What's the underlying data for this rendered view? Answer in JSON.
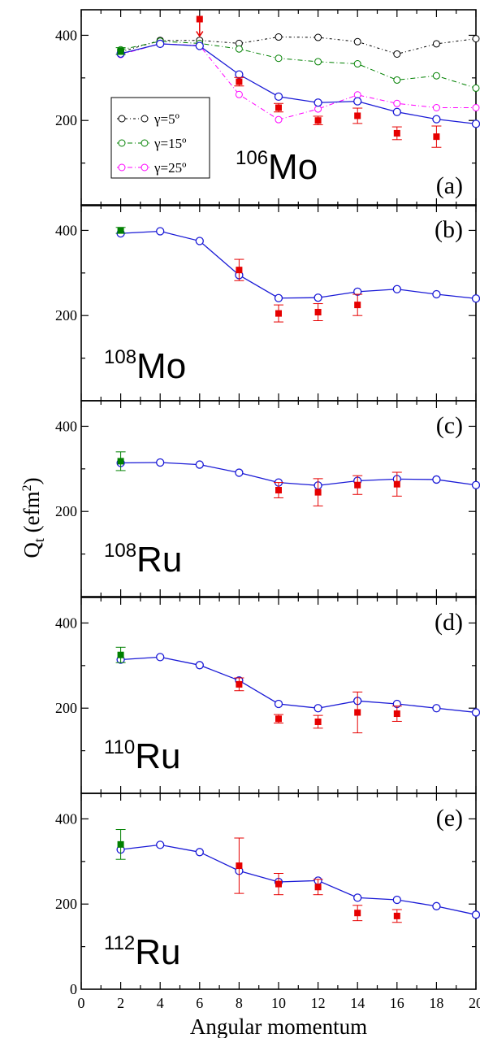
{
  "chart_data": {
    "type": "scatter",
    "ylabel_main": "Q",
    "ylabel_sub": "t",
    "ylabel_unit": " (efm",
    "ylabel_unit_sup": "2",
    "ylabel_unit_close": ")",
    "xlabel": "Angular momentum",
    "xlim": [
      0,
      20
    ],
    "ylim": [
      0,
      460
    ],
    "x_ticks": [
      0,
      2,
      4,
      6,
      8,
      10,
      12,
      14,
      16,
      18,
      20
    ],
    "y_ticks": [
      200,
      400
    ],
    "bottom_y_ticks": [
      0,
      200,
      400
    ],
    "colors": {
      "theory": "#1a1ad6",
      "exp": "#e60000",
      "exp_2plus": "#008000",
      "g5": "#000000",
      "g15": "#008000",
      "g25": "#ff00ff"
    },
    "panels": [
      {
        "label": "(a)",
        "nucleus_mass": "106",
        "nucleus_symbol": "Mo",
        "theory": {
          "x": [
            2,
            4,
            6,
            8,
            10,
            12,
            14,
            16,
            18,
            20
          ],
          "y": [
            357,
            380,
            375,
            308,
            256,
            242,
            245,
            220,
            203,
            192
          ]
        },
        "exp_2plus": {
          "x": 2,
          "y": 363,
          "err": 8
        },
        "exp": [
          {
            "x": 8,
            "y": 291,
            "err": 10
          },
          {
            "x": 10,
            "y": 230,
            "err": 10
          },
          {
            "x": 12,
            "y": 200,
            "err": 10
          },
          {
            "x": 14,
            "y": 211,
            "err": 18
          },
          {
            "x": 16,
            "y": 170,
            "err": 15
          },
          {
            "x": 18,
            "y": 162,
            "err": 25
          }
        ],
        "upper_limit": {
          "x": 6,
          "y": 438
        },
        "gamma_series": [
          {
            "name": "γ=5º",
            "key": "g5",
            "y": [
              361,
              388,
              388,
              381,
              396,
              395,
              385,
              356,
              380,
              392
            ]
          },
          {
            "name": "γ=15º",
            "key": "g15",
            "y": [
              366,
              386,
              381,
              368,
              346,
              338,
              333,
              295,
              305,
              276
            ]
          },
          {
            "name": "γ=25º",
            "key": "g25",
            "y": [
              355,
              380,
              376,
              261,
              202,
              227,
              260,
              240,
              230,
              230
            ]
          }
        ]
      },
      {
        "label": "(b)",
        "nucleus_mass": "108",
        "nucleus_symbol": "Mo",
        "theory": {
          "x": [
            2,
            4,
            6,
            8,
            10,
            12,
            14,
            16,
            18,
            20
          ],
          "y": [
            393,
            398,
            375,
            295,
            241,
            242,
            256,
            262,
            250,
            240
          ]
        },
        "exp_2plus": {
          "x": 2,
          "y": 400,
          "err": 7
        },
        "exp": [
          {
            "x": 8,
            "y": 307,
            "err": 25
          },
          {
            "x": 10,
            "y": 205,
            "err": 20
          },
          {
            "x": 12,
            "y": 208,
            "err": 20
          },
          {
            "x": 14,
            "y": 225,
            "err": 25
          }
        ]
      },
      {
        "label": "(c)",
        "nucleus_mass": "108",
        "nucleus_symbol": "Ru",
        "theory": {
          "x": [
            2,
            4,
            6,
            8,
            10,
            12,
            14,
            16,
            18,
            20
          ],
          "y": [
            314,
            315,
            310,
            291,
            268,
            261,
            272,
            276,
            275,
            262
          ]
        },
        "exp_2plus": {
          "x": 2,
          "y": 318,
          "err": 22
        },
        "exp": [
          {
            "x": 10,
            "y": 250,
            "err": 18
          },
          {
            "x": 12,
            "y": 245,
            "err": 32
          },
          {
            "x": 14,
            "y": 262,
            "err": 22
          },
          {
            "x": 16,
            "y": 264,
            "err": 28
          }
        ]
      },
      {
        "label": "(d)",
        "nucleus_mass": "110",
        "nucleus_symbol": "Ru",
        "theory": {
          "x": [
            2,
            4,
            6,
            8,
            10,
            12,
            14,
            16,
            18,
            20
          ],
          "y": [
            314,
            320,
            301,
            265,
            210,
            200,
            217,
            210,
            200,
            190
          ]
        },
        "exp_2plus": {
          "x": 2,
          "y": 325,
          "err": 18
        },
        "exp": [
          {
            "x": 8,
            "y": 256,
            "err": 15
          },
          {
            "x": 10,
            "y": 175,
            "err": 10
          },
          {
            "x": 12,
            "y": 168,
            "err": 15
          },
          {
            "x": 14,
            "y": 190,
            "err": 48
          },
          {
            "x": 16,
            "y": 187,
            "err": 18
          }
        ]
      },
      {
        "label": "(e)",
        "nucleus_mass": "112",
        "nucleus_symbol": "Ru",
        "theory": {
          "x": [
            2,
            4,
            6,
            8,
            10,
            12,
            14,
            16,
            18,
            20
          ],
          "y": [
            328,
            339,
            322,
            278,
            252,
            255,
            215,
            210,
            195,
            175
          ]
        },
        "exp_2plus": {
          "x": 2,
          "y": 340,
          "err": 35
        },
        "exp": [
          {
            "x": 8,
            "y": 290,
            "err": 65
          },
          {
            "x": 10,
            "y": 247,
            "err": 25
          },
          {
            "x": 12,
            "y": 240,
            "err": 18
          },
          {
            "x": 14,
            "y": 179,
            "err": 18
          },
          {
            "x": 16,
            "y": 172,
            "err": 15
          }
        ]
      }
    ]
  }
}
